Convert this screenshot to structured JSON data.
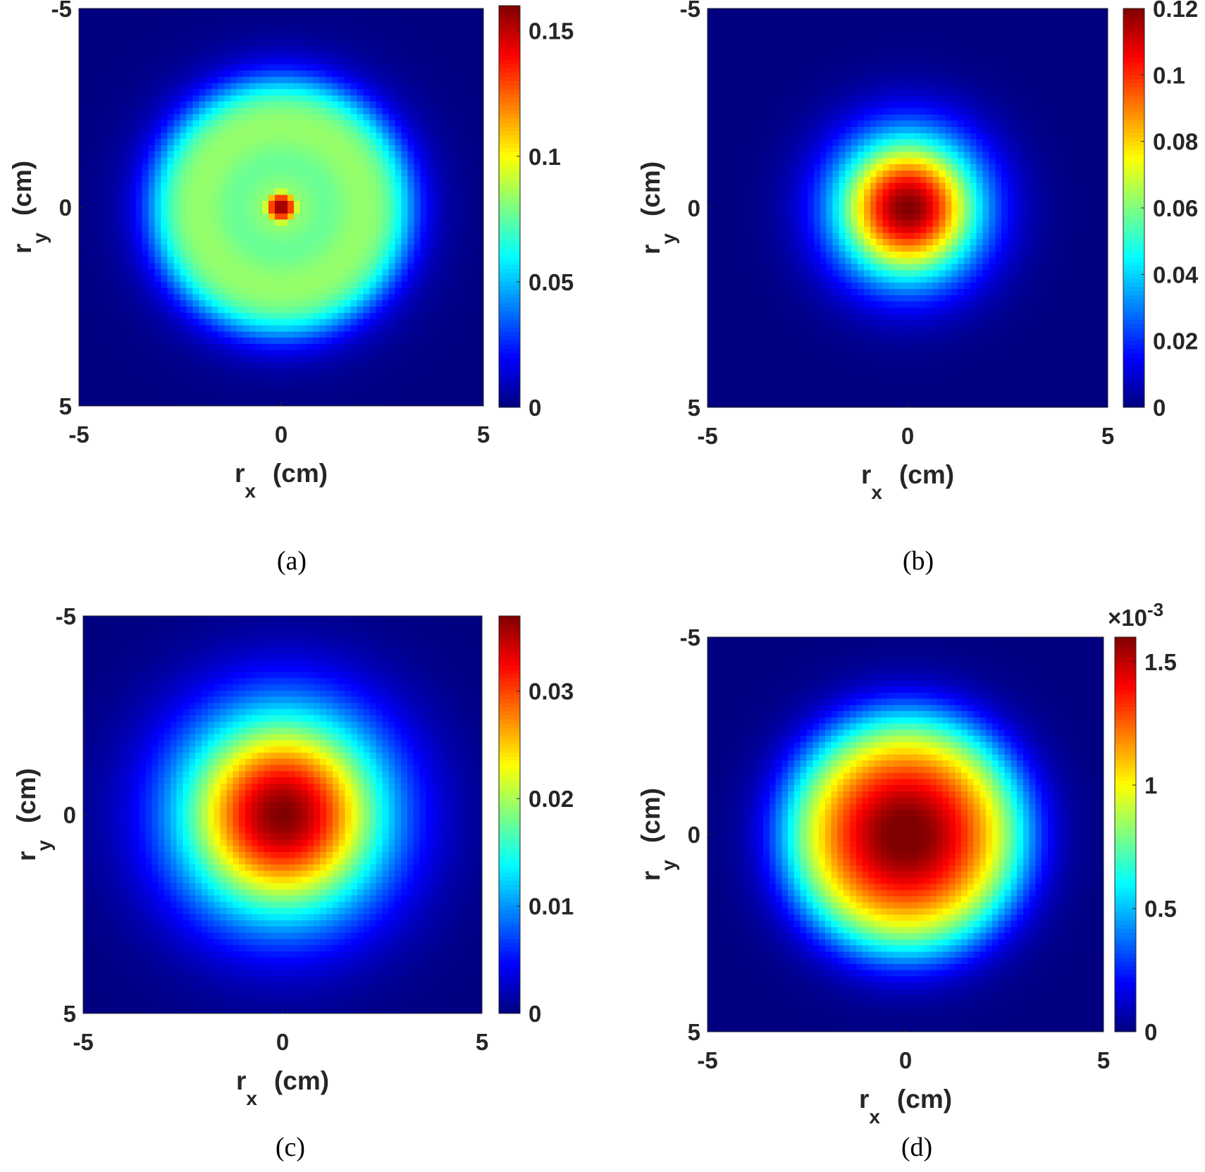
{
  "figure": {
    "panels": [
      {
        "caption": "(a)",
        "heatmap": {
          "profile": "ring",
          "center_val": 0.16,
          "ring_val": 0.085,
          "ring_r": 2.2,
          "outer_r": 3.2
        },
        "colorbar": {
          "max": 0.16,
          "ticks": [
            0,
            0.05,
            0.1,
            0.15
          ],
          "tick_labels": [
            "0",
            "0.05",
            "0.1",
            "0.15"
          ],
          "exponent": ""
        }
      },
      {
        "caption": "(b)",
        "heatmap": {
          "profile": "spot",
          "center_val": 0.12,
          "sigma": 1.25
        },
        "colorbar": {
          "max": 0.12,
          "ticks": [
            0,
            0.02,
            0.04,
            0.06,
            0.08,
            0.1,
            0.12
          ],
          "tick_labels": [
            "0",
            "0.02",
            "0.04",
            "0.06",
            "0.08",
            "0.1",
            "0.12"
          ],
          "exponent": ""
        }
      },
      {
        "caption": "(c)",
        "heatmap": {
          "profile": "spot",
          "center_val": 0.037,
          "sigma": 1.8
        },
        "colorbar": {
          "max": 0.037,
          "ticks": [
            0,
            0.01,
            0.02,
            0.03
          ],
          "tick_labels": [
            "0",
            "0.01",
            "0.02",
            "0.03"
          ],
          "exponent": ""
        }
      },
      {
        "caption": "(d)",
        "heatmap": {
          "profile": "flat",
          "center_val": 0.0016,
          "flat_r": 3.5,
          "flat_p": 4
        },
        "colorbar": {
          "max": 0.0016,
          "ticks": [
            0,
            0.0005,
            0.001,
            0.0015
          ],
          "tick_labels": [
            "0",
            "0.5",
            "1",
            "1.5"
          ],
          "exponent": "×10-3"
        }
      }
    ]
  },
  "chart_data": [
    {
      "type": "heatmap",
      "xlabel_main": "r",
      "xlabel_sub": "x",
      "xlabel_unit": "(cm)",
      "ylabel_main": "r",
      "ylabel_sub": "y",
      "ylabel_unit": "(cm)",
      "x_ticks": [
        "-5",
        "0",
        "5"
      ],
      "y_ticks": [
        "-5",
        "0",
        "5"
      ],
      "xlim": [
        -5,
        5
      ],
      "ylim": [
        -5,
        5
      ],
      "colorbar_range": [
        0,
        0.16
      ],
      "colormap": "jet"
    },
    {
      "type": "heatmap",
      "xlabel_main": "r",
      "xlabel_sub": "x",
      "xlabel_unit": "(cm)",
      "ylabel_main": "r",
      "ylabel_sub": "y",
      "ylabel_unit": "(cm)",
      "x_ticks": [
        "-5",
        "0",
        "5"
      ],
      "y_ticks": [
        "-5",
        "0",
        "5"
      ],
      "xlim": [
        -5,
        5
      ],
      "ylim": [
        -5,
        5
      ],
      "colorbar_range": [
        0,
        0.12
      ],
      "colormap": "jet"
    },
    {
      "type": "heatmap",
      "xlabel_main": "r",
      "xlabel_sub": "x",
      "xlabel_unit": "(cm)",
      "ylabel_main": "r",
      "ylabel_sub": "y",
      "ylabel_unit": "(cm)",
      "x_ticks": [
        "-5",
        "0",
        "5"
      ],
      "y_ticks": [
        "-5",
        "0",
        "5"
      ],
      "xlim": [
        -5,
        5
      ],
      "ylim": [
        -5,
        5
      ],
      "colorbar_range": [
        0,
        0.037
      ],
      "colormap": "jet"
    },
    {
      "type": "heatmap",
      "xlabel_main": "r",
      "xlabel_sub": "x",
      "xlabel_unit": "(cm)",
      "ylabel_main": "r",
      "ylabel_sub": "y",
      "ylabel_unit": "(cm)",
      "x_ticks": [
        "-5",
        "0",
        "5"
      ],
      "y_ticks": [
        "-5",
        "0",
        "5"
      ],
      "xlim": [
        -5,
        5
      ],
      "ylim": [
        -5,
        5
      ],
      "colorbar_range": [
        0,
        0.0016
      ],
      "colormap": "jet"
    }
  ]
}
